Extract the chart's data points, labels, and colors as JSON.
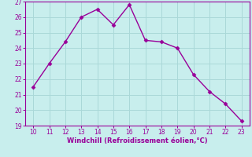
{
  "x": [
    10,
    11,
    12,
    13,
    14,
    15,
    16,
    17,
    18,
    19,
    20,
    21,
    22,
    23
  ],
  "y": [
    21.5,
    23.0,
    24.4,
    26.0,
    26.5,
    25.5,
    26.8,
    24.5,
    24.4,
    24.0,
    22.3,
    21.2,
    20.4,
    19.3
  ],
  "xlim": [
    9.5,
    23.5
  ],
  "ylim": [
    19,
    27
  ],
  "xticks": [
    10,
    11,
    12,
    13,
    14,
    15,
    16,
    17,
    18,
    19,
    20,
    21,
    22,
    23
  ],
  "yticks": [
    19,
    20,
    21,
    22,
    23,
    24,
    25,
    26,
    27
  ],
  "xlabel": "Windchill (Refroidissement éolien,°C)",
  "line_color": "#990099",
  "marker_color": "#990099",
  "bg_color": "#c8eeed",
  "grid_color": "#aad8d8",
  "tick_color": "#990099",
  "label_color": "#990099",
  "spine_color": "#990099"
}
